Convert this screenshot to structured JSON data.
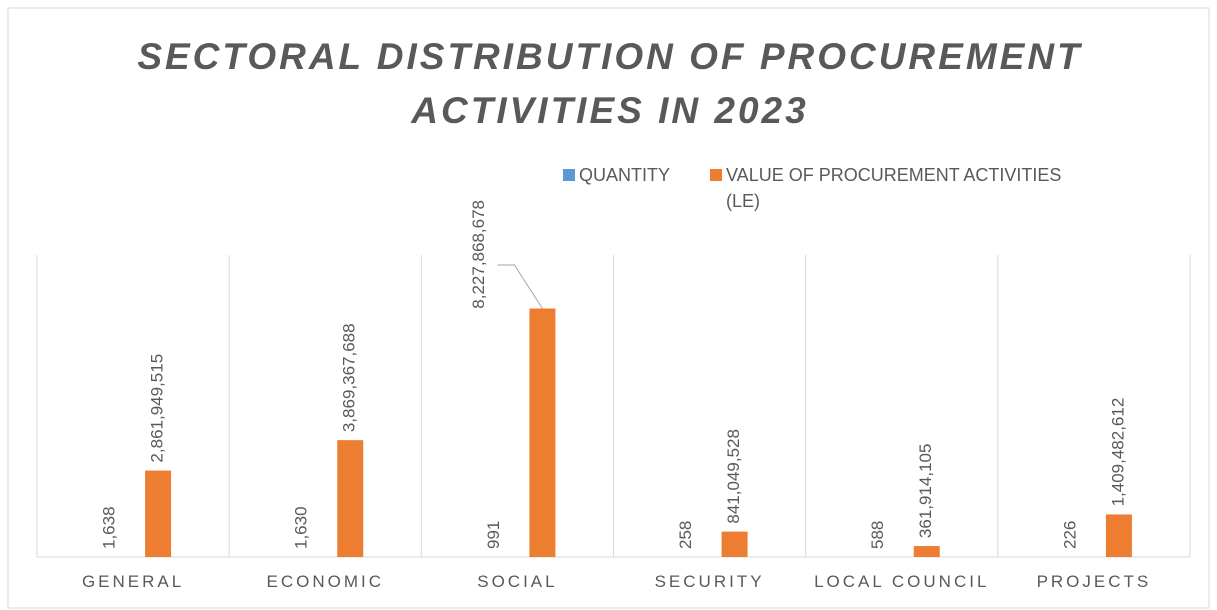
{
  "chart_data": {
    "type": "bar",
    "title": "SECTORAL DISTRIBUTION OF PROCUREMENT ACTIVITIES IN 2023",
    "categories": [
      "GENERAL",
      "ECONOMIC",
      "SOCIAL",
      "SECURITY",
      "LOCAL COUNCIL",
      "PROJECTS"
    ],
    "series": [
      {
        "name": "QUANTITY",
        "color": "#5b9bd5",
        "values": [
          1638,
          1630,
          991,
          258,
          588,
          226
        ],
        "value_labels": [
          "1,638",
          "1,630",
          "991",
          "258",
          "588",
          "226"
        ]
      },
      {
        "name": "VALUE OF PROCUREMENT ACTIVITIES (LE)",
        "color": "#ed7d31",
        "values": [
          2861949515,
          3869367688,
          8227868678,
          841049528,
          361914105,
          1409482612
        ],
        "value_labels": [
          "2,861,949,515",
          "3,869,367,688",
          "8,227,868,678",
          "841,049,528",
          "361,914,105",
          "1,409,482,612"
        ]
      }
    ],
    "ylim": [
      0,
      10000000000
    ],
    "legend": "top-right"
  }
}
